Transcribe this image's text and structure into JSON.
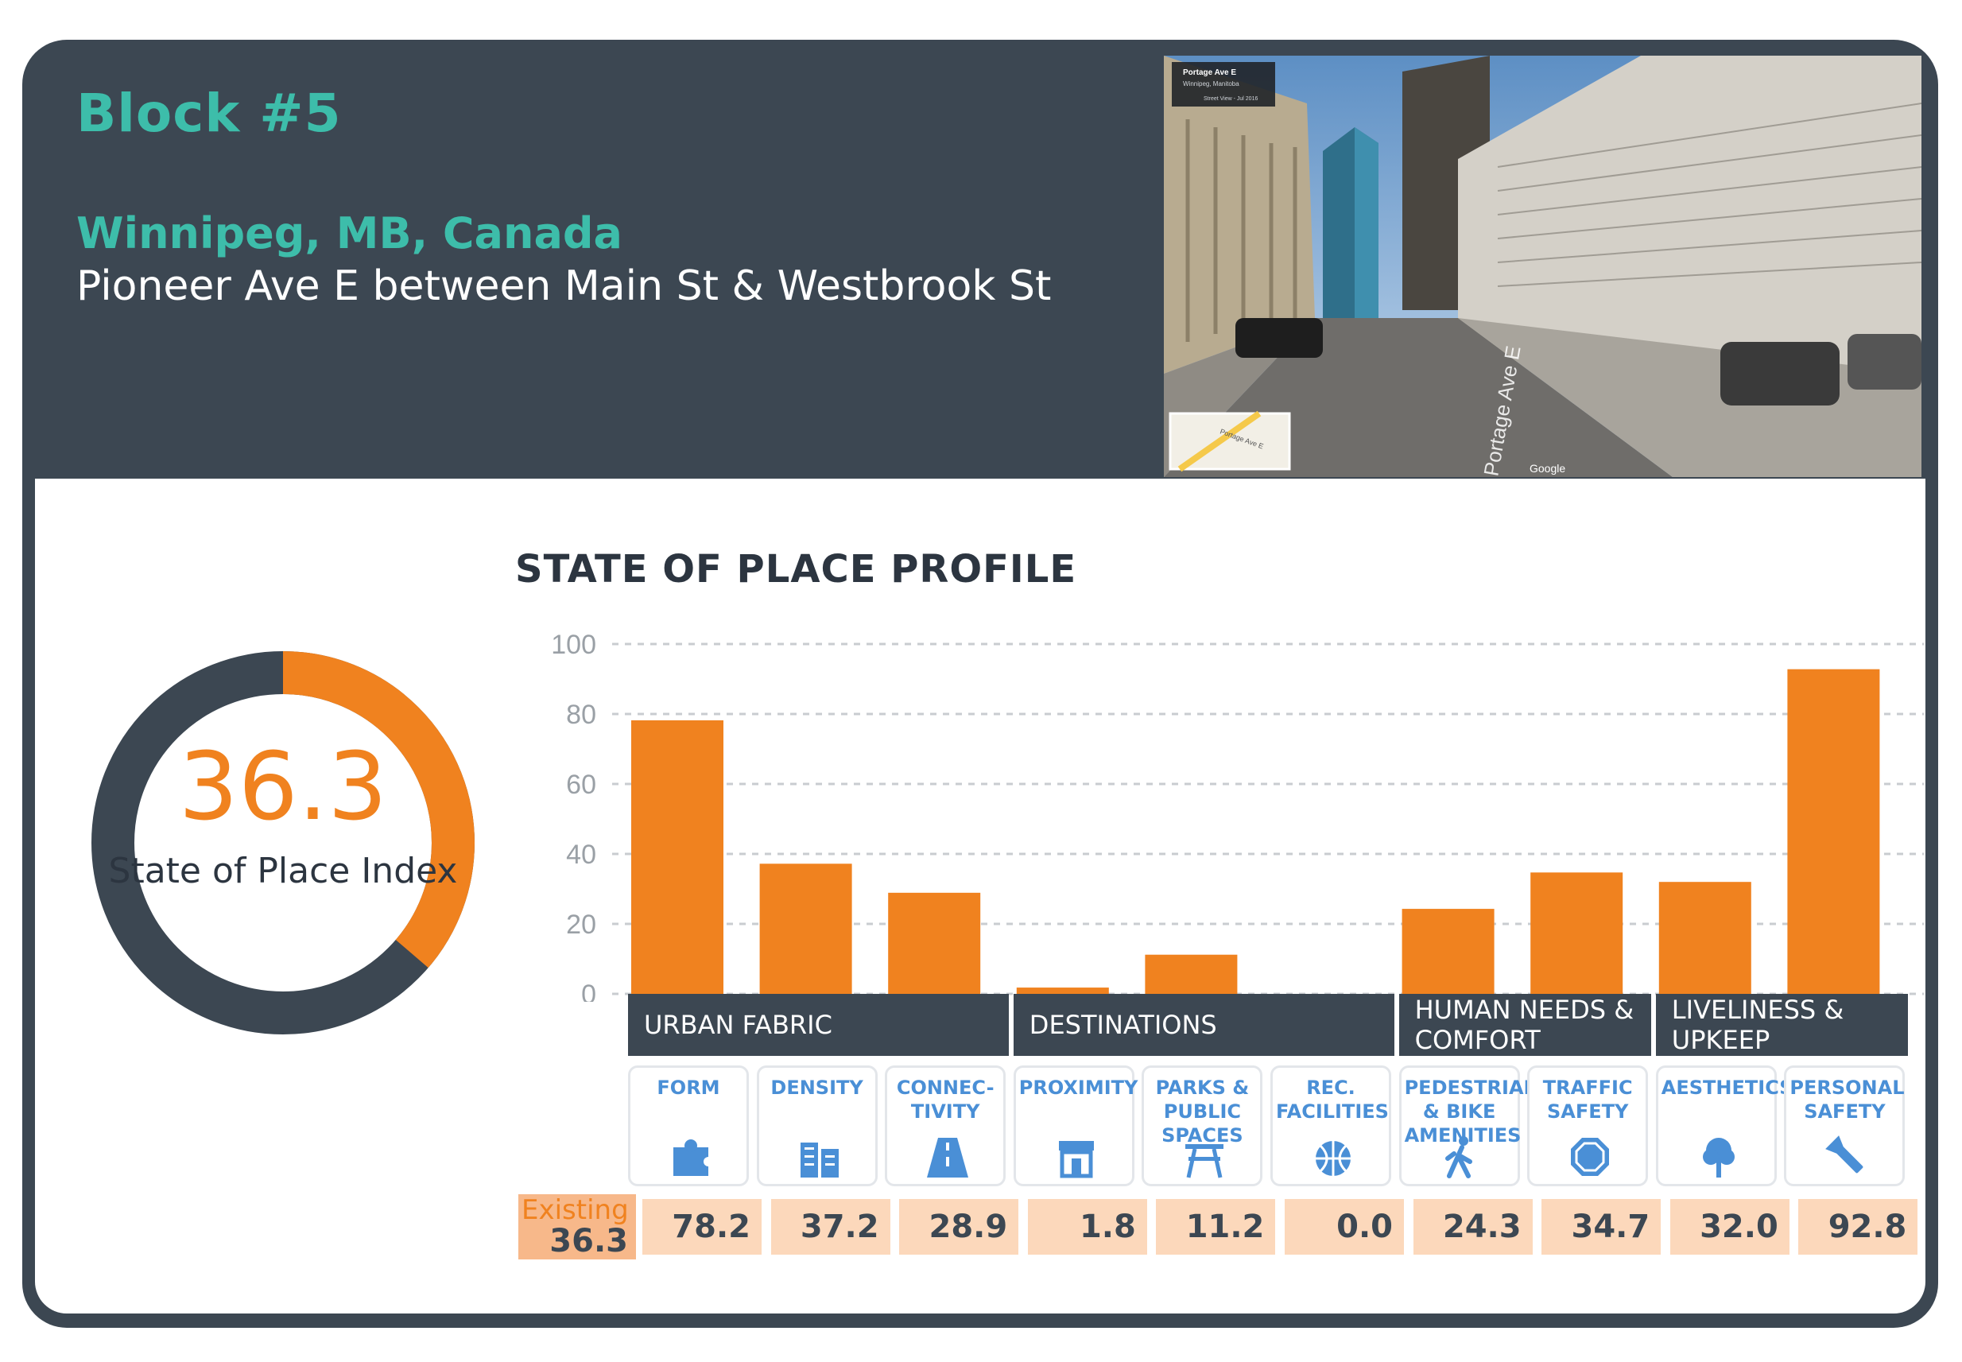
{
  "header": {
    "title": "Block #5",
    "city": "Winnipeg, MB, Canada",
    "street": "Pioneer Ave E between Main St & Westbrook St"
  },
  "photo": {
    "place_title": "Portage Ave E",
    "place_subtitle": "Winnipeg, Manitoba",
    "date_label": "Street View - Jul 2016",
    "street_label": "Portage Ave E",
    "map_label": "Portage Ave E",
    "brand": "Google"
  },
  "index": {
    "value": 36.3,
    "value_text": "36.3",
    "label": "State of Place Index"
  },
  "chart_data": {
    "type": "bar",
    "title": "STATE OF PLACE PROFILE",
    "ylim": [
      0,
      100
    ],
    "yticks": [
      0,
      20,
      40,
      60,
      80,
      100
    ],
    "grid": true,
    "categories": [
      "FORM",
      "DENSITY",
      "CONNEC-TIVITY",
      "PROXIMITY",
      "PARKS & PUBLIC SPACES",
      "REC. FACILITIES",
      "PEDESTRIAN & BIKE AMENITIES",
      "TRAFFIC SAFETY",
      "AESTHETICS",
      "PERSONAL SAFETY"
    ],
    "values": [
      78.2,
      37.2,
      28.9,
      1.8,
      11.2,
      0.0,
      24.3,
      34.7,
      32.0,
      92.8
    ],
    "groups": [
      {
        "label": "URBAN FABRIC",
        "span": 3
      },
      {
        "label": "DESTINATIONS",
        "span": 3
      },
      {
        "label": "HUMAN NEEDS & COMFORT",
        "span": 2
      },
      {
        "label": "LIVELINESS & UPKEEP",
        "span": 2
      }
    ]
  },
  "tiles": [
    {
      "label": "FORM",
      "icon": "puzzle-icon"
    },
    {
      "label": "DENSITY",
      "icon": "buildings-icon"
    },
    {
      "label": "CONNEC-\nTIVITY",
      "icon": "road-icon"
    },
    {
      "label": "PROXIMITY",
      "icon": "storefront-icon"
    },
    {
      "label": "PARKS &\nPUBLIC\nSPACES",
      "icon": "picnic-table-icon"
    },
    {
      "label": "REC.\nFACILITIES",
      "icon": "basketball-icon"
    },
    {
      "label": "PEDESTRIAN\n& BIKE\nAMENITIES",
      "icon": "pedestrian-icon"
    },
    {
      "label": "TRAFFIC\nSAFETY",
      "icon": "stop-sign-icon"
    },
    {
      "label": "AESTHETICS",
      "icon": "tree-icon"
    },
    {
      "label": "PERSONAL\nSAFETY",
      "icon": "flashlight-icon"
    }
  ],
  "values_row": {
    "existing_label": "Existing",
    "existing_value": "36.3",
    "values": [
      "78.2",
      "37.2",
      "28.9",
      "1.8",
      "11.2",
      "0.0",
      "24.3",
      "34.7",
      "32.0",
      "92.8"
    ]
  },
  "colors": {
    "accent": "#f0821f",
    "dark": "#3c4752",
    "teal": "#3dbdaa",
    "icon_blue": "#4a8fd6",
    "value_bg": "#fcd8bb"
  }
}
